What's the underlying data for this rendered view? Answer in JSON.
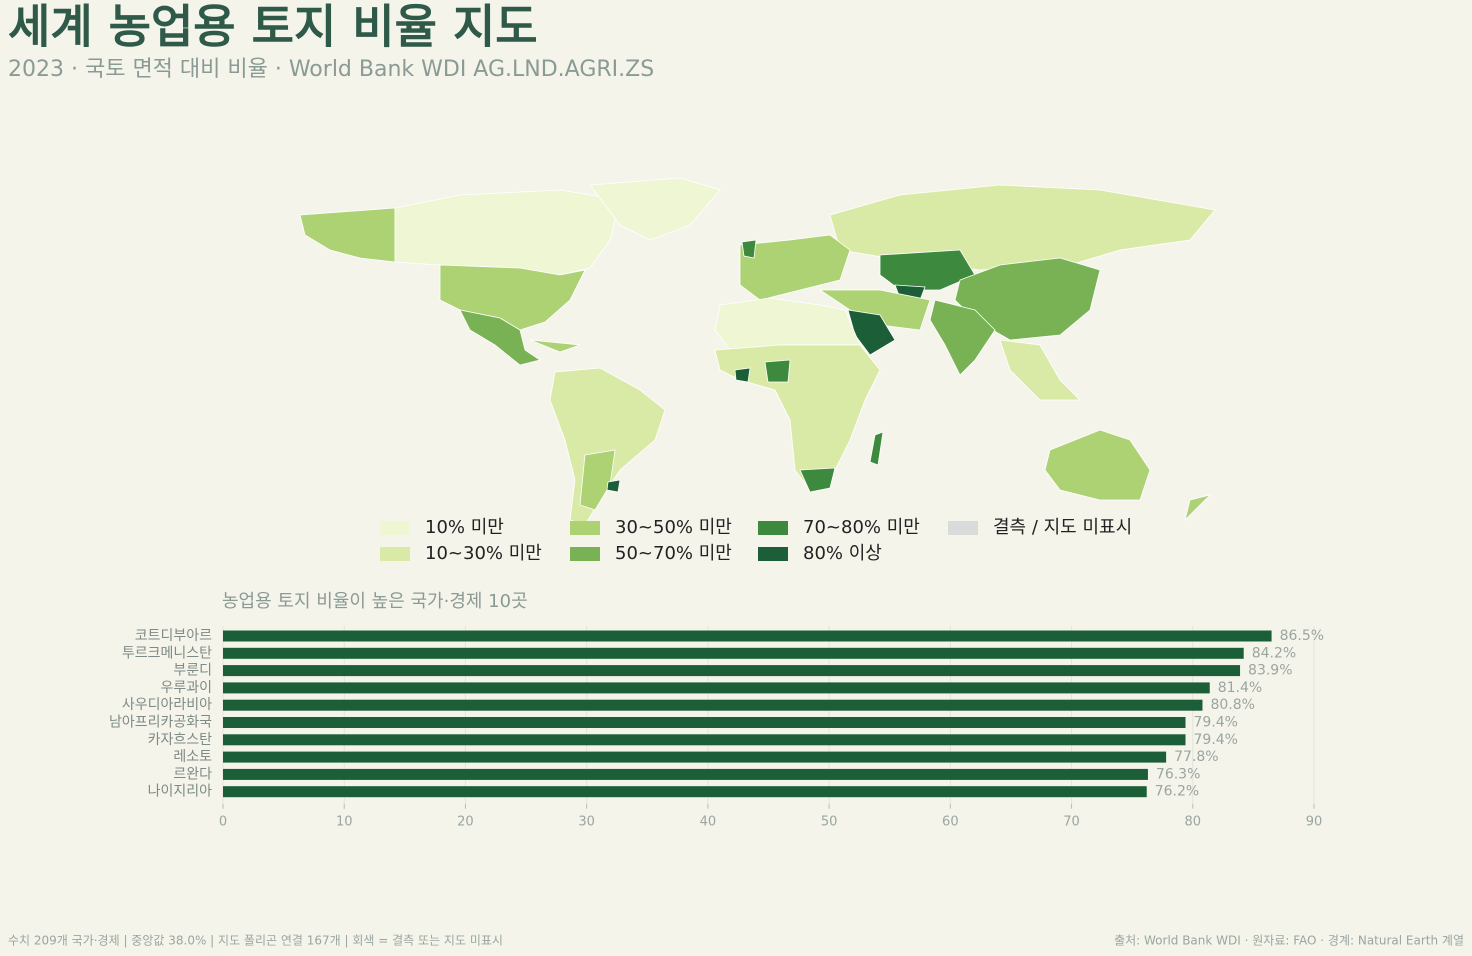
{
  "header": {
    "title": "세계 농업용 토지 비율 지도",
    "subtitle": "2023 · 국토 면적 대비 비율 · World Bank WDI AG.LND.AGRI.ZS"
  },
  "map": {
    "legend": [
      {
        "label": "10% 미만",
        "color": "#eef6d3"
      },
      {
        "label": "10~30% 미만",
        "color": "#d9eaa6"
      },
      {
        "label": "30~50% 미만",
        "color": "#acd274"
      },
      {
        "label": "50~70% 미만",
        "color": "#78b254"
      },
      {
        "label": "70~80% 미만",
        "color": "#3d8a3e"
      },
      {
        "label": "80% 이상",
        "color": "#1b5e38"
      },
      {
        "label": "결측 / 지도 미표시",
        "color": "#d9dcdb"
      }
    ]
  },
  "chart_data": {
    "type": "bar",
    "orientation": "horizontal",
    "title": "농업용 토지 비율이 높은 국가·경제 10곳",
    "categories": [
      "코트디부아르",
      "투르크메니스탄",
      "부룬디",
      "우루과이",
      "사우디아라비아",
      "남아프리카공화국",
      "카자흐스탄",
      "레소토",
      "르완다",
      "나이지리아"
    ],
    "values": [
      86.5,
      84.2,
      83.9,
      81.4,
      80.8,
      79.4,
      79.4,
      77.8,
      76.3,
      76.2
    ],
    "value_labels": [
      "86.5%",
      "84.2%",
      "83.9%",
      "81.4%",
      "80.8%",
      "79.4%",
      "79.4%",
      "77.8%",
      "76.3%",
      "76.2%"
    ],
    "color": "#1b5e38",
    "xlim": [
      0,
      90
    ],
    "xticks": [
      0,
      10,
      20,
      30,
      40,
      50,
      60,
      70,
      80,
      90
    ],
    "grid": true
  },
  "footer": {
    "left": "수치 209개 국가·경제 | 중앙값 38.0% | 지도 폴리곤 연결 167개 | 회색 = 결측 또는 지도 미표시",
    "right": "출처: World Bank WDI · 원자료: FAO · 경계: Natural Earth 계열"
  }
}
